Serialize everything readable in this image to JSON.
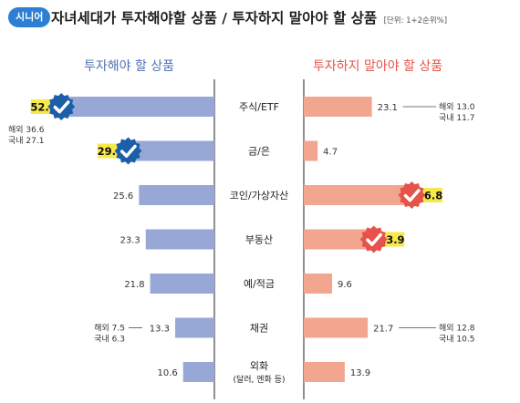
{
  "header": {
    "tag": "시니어",
    "title": "자녀세대가 투자해야할 상품 / 투자하지 말아야 할 상품",
    "unit": "[단위: 1+2순위%]"
  },
  "colors": {
    "tag": "#2d7fd3",
    "left_bar": "#97a8d6",
    "right_bar": "#f2a58f",
    "left_title": "#5273b5",
    "right_title": "#e5534b",
    "highlight": "#f7e94a",
    "badge_left": "#1c5fa8",
    "badge_right": "#e5534b"
  },
  "chart_data": {
    "type": "bar",
    "layout": "butterfly",
    "categories": [
      "주식/ETF",
      "금/은",
      "코인/가상자산",
      "부동산",
      "예/적금",
      "채권",
      "외화"
    ],
    "category_notes": [
      "",
      "",
      "",
      "",
      "",
      "",
      "(달러, 엔화 등)"
    ],
    "series": [
      {
        "name": "투자해야 할 상품",
        "values": [
          52.1,
          29.4,
          25.6,
          23.3,
          21.8,
          13.3,
          10.6
        ],
        "highlighted": [
          true,
          true,
          false,
          false,
          false,
          false,
          false
        ]
      },
      {
        "name": "투자하지 말아야 할 상품",
        "values": [
          23.1,
          4.7,
          36.8,
          23.9,
          9.6,
          21.7,
          13.9
        ],
        "highlighted": [
          false,
          false,
          true,
          true,
          false,
          false,
          false
        ]
      }
    ],
    "breakdowns": [
      {
        "series": 0,
        "category": 0,
        "lines": [
          "해외 36.6",
          "국내 27.1"
        ]
      },
      {
        "series": 0,
        "category": 5,
        "lines": [
          "해외 7.5",
          "국내 6.3"
        ]
      },
      {
        "series": 1,
        "category": 0,
        "lines": [
          "해외 13.0",
          "국내 11.7"
        ]
      },
      {
        "series": 1,
        "category": 5,
        "lines": [
          "해외 12.8",
          "국내 10.5"
        ]
      }
    ]
  }
}
